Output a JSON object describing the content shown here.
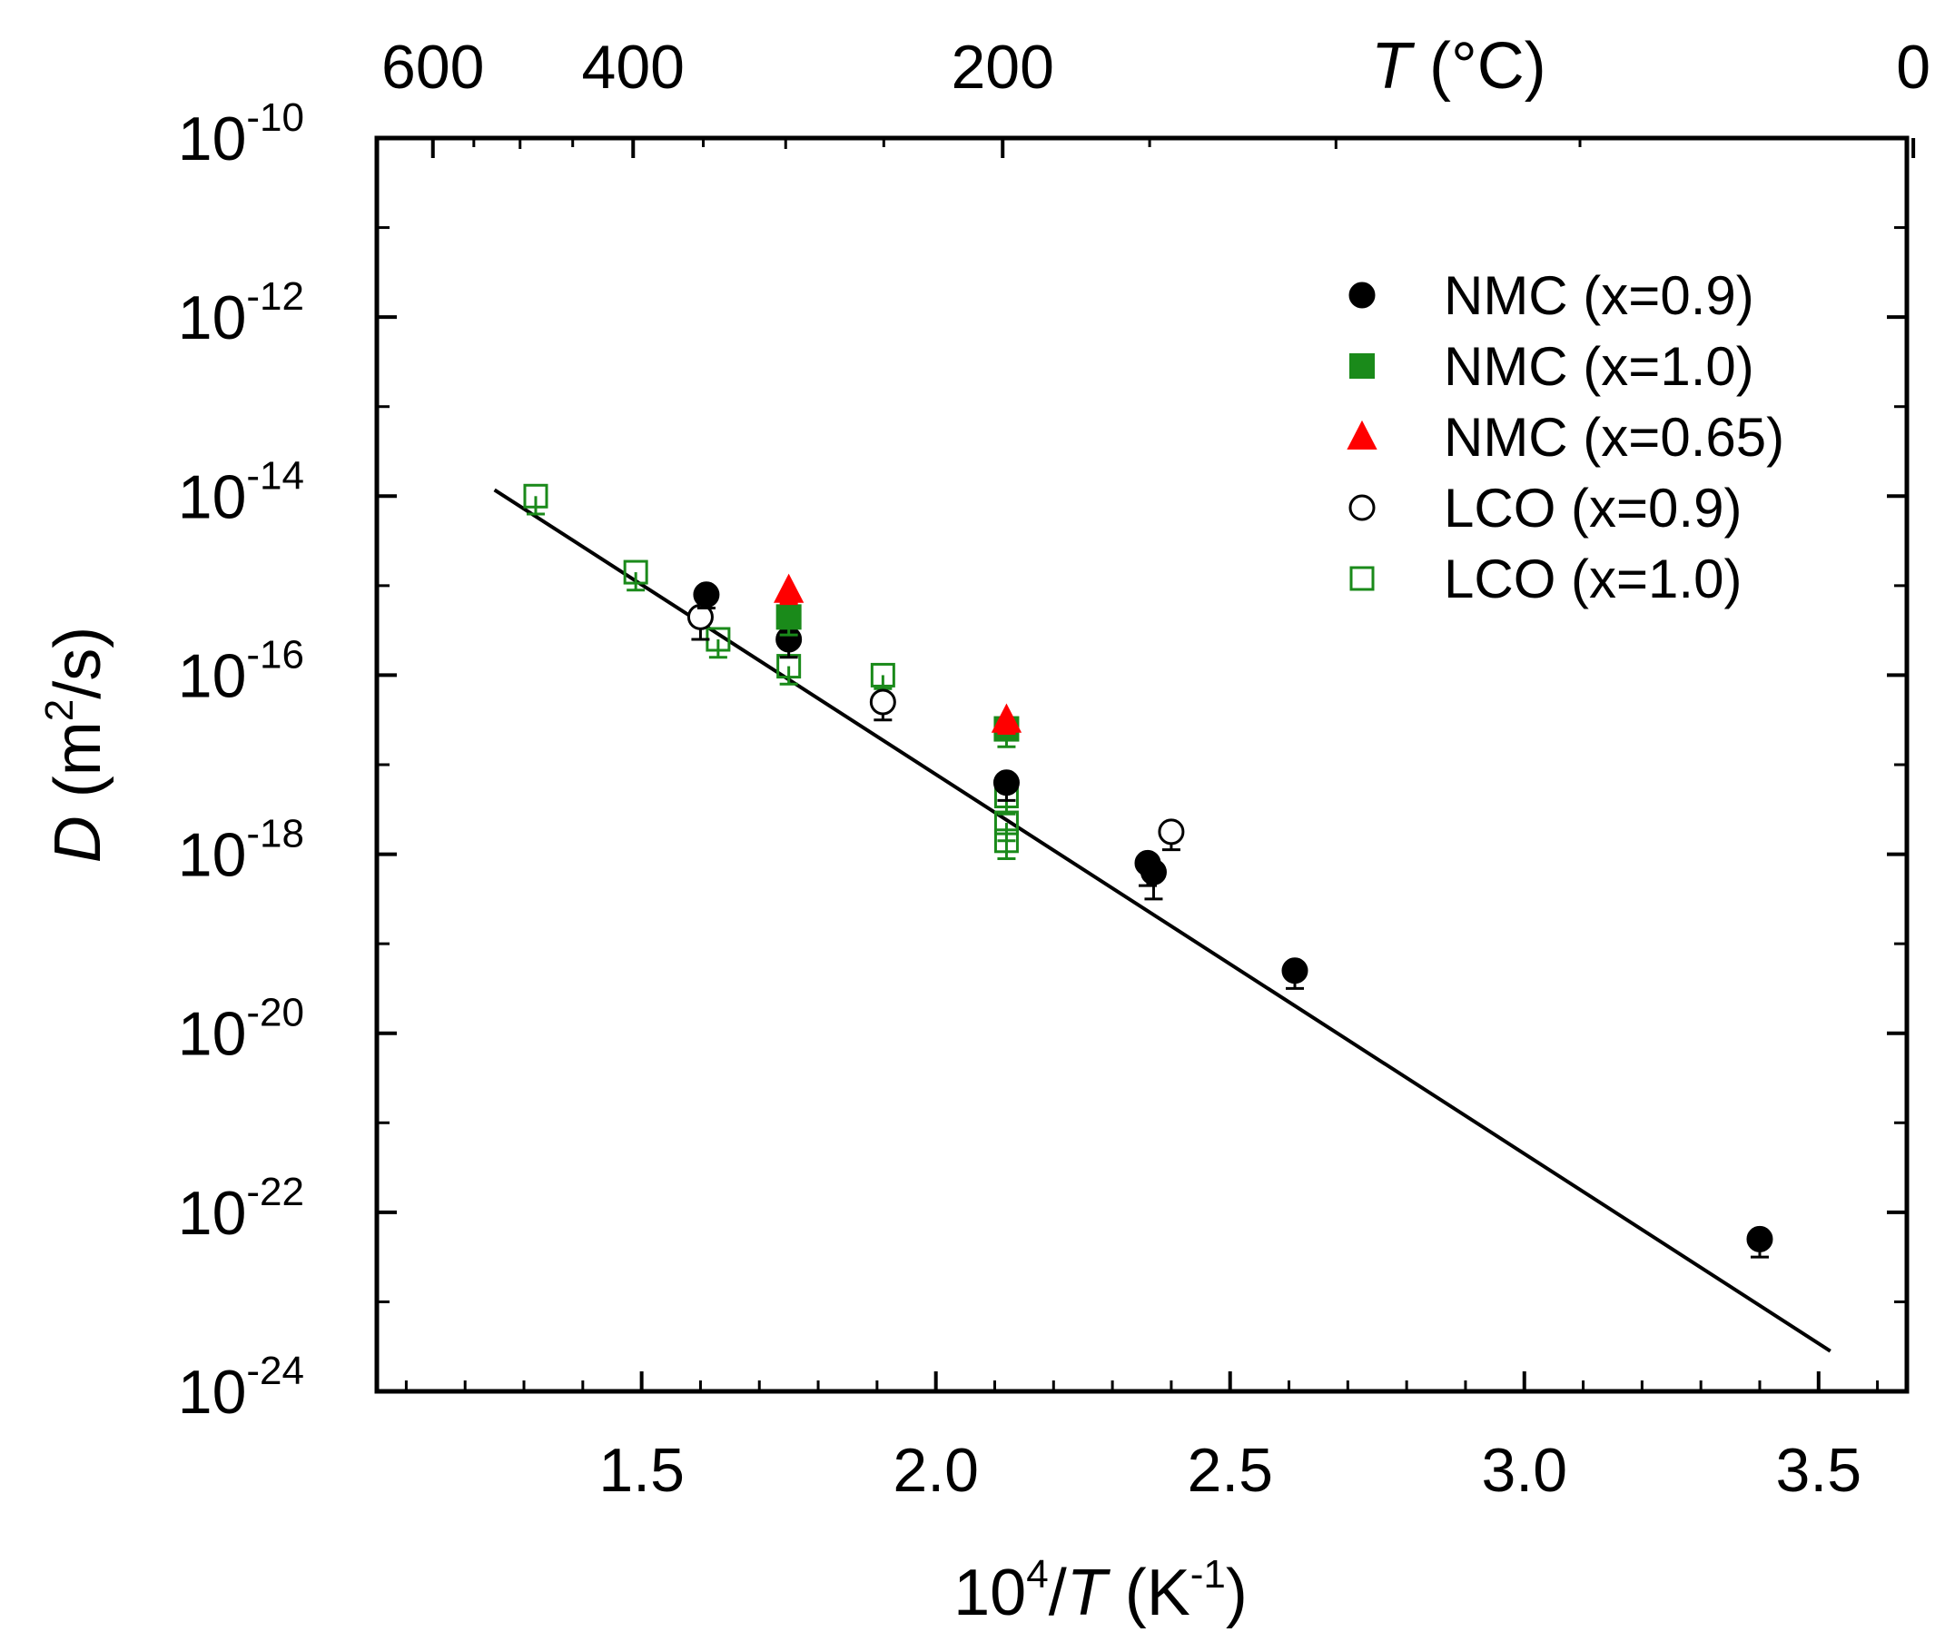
{
  "chart_data": {
    "type": "scatter",
    "x_axis": {
      "label_prefix": "10",
      "label_sup": "4",
      "label_sep": "/",
      "label_var": "T",
      "label_unit_open": " (K",
      "label_unit_sup": "-1",
      "label_unit_close": ")",
      "range": [
        1.05,
        3.65
      ],
      "ticks": [
        1.5,
        2.0,
        2.5,
        3.0,
        3.5
      ],
      "tick_labels": [
        "1.5",
        "2.0",
        "2.5",
        "3.0",
        "3.5"
      ]
    },
    "top_axis": {
      "label_var": "T",
      "label_unit": " (°C)",
      "ticks_celsius": [
        600,
        400,
        200,
        0
      ],
      "tick_labels": [
        "600",
        "400",
        "200",
        "0"
      ],
      "minor_ticks_celsius": [
        500,
        300,
        100
      ]
    },
    "y_axis": {
      "label_var": "D",
      "label_unit_open": " (m",
      "label_unit_sup": "2",
      "label_unit_close": "/s)",
      "scale": "log",
      "range_exponent": [
        -24,
        -10
      ],
      "ticks_exponent": [
        -10,
        -12,
        -14,
        -16,
        -18,
        -20,
        -22,
        -24
      ],
      "tick_base": "10",
      "tick_exponent_labels": [
        "-10",
        "-12",
        "-14",
        "-16",
        "-18",
        "-20",
        "-22",
        "-24"
      ]
    },
    "fit_line": {
      "x": [
        1.25,
        3.52
      ],
      "log10_y": [
        -13.93,
        -23.55
      ]
    },
    "series": [
      {
        "name": "NMC (x=0.9)",
        "marker": "circle-filled",
        "color": "#000000",
        "points": [
          {
            "x": 1.61,
            "log10_y": -15.1,
            "err": 0.15
          },
          {
            "x": 1.75,
            "log10_y": -15.6,
            "err": 0.2
          },
          {
            "x": 2.12,
            "log10_y": -17.2,
            "err": 0.2
          },
          {
            "x": 2.36,
            "log10_y": -18.1,
            "err": 0.25
          },
          {
            "x": 2.37,
            "log10_y": -18.2,
            "err": 0.3
          },
          {
            "x": 2.61,
            "log10_y": -19.3,
            "err": 0.2
          },
          {
            "x": 3.4,
            "log10_y": -22.3,
            "err": 0.2
          }
        ]
      },
      {
        "name": "NMC (x=1.0)",
        "marker": "square-filled",
        "color": "#1a8a1a",
        "points": [
          {
            "x": 1.75,
            "log10_y": -15.35,
            "err": 0.2
          },
          {
            "x": 2.12,
            "log10_y": -16.6,
            "err": 0.2
          }
        ]
      },
      {
        "name": "NMC (x=0.65)",
        "marker": "triangle-filled",
        "color": "#ff0000",
        "points": [
          {
            "x": 1.75,
            "log10_y": -15.05,
            "err": 0.15
          },
          {
            "x": 2.12,
            "log10_y": -16.5,
            "err": 0.15
          }
        ]
      },
      {
        "name": "LCO (x=0.9)",
        "marker": "circle-open",
        "color": "#000000",
        "points": [
          {
            "x": 1.6,
            "log10_y": -15.35,
            "err": 0.25
          },
          {
            "x": 1.91,
            "log10_y": -16.3,
            "err": 0.2
          },
          {
            "x": 2.4,
            "log10_y": -17.75,
            "err": 0.2
          }
        ]
      },
      {
        "name": "LCO (x=1.0)",
        "marker": "square-open",
        "color": "#1a8a1a",
        "points": [
          {
            "x": 1.32,
            "log10_y": -14.0,
            "err": 0.2
          },
          {
            "x": 1.49,
            "log10_y": -14.85,
            "err": 0.2
          },
          {
            "x": 1.63,
            "log10_y": -15.6,
            "err": 0.2
          },
          {
            "x": 1.75,
            "log10_y": -15.9,
            "err": 0.2
          },
          {
            "x": 1.91,
            "log10_y": -16.0,
            "err": 0.15
          },
          {
            "x": 2.12,
            "log10_y": -17.35,
            "err": 0.2
          },
          {
            "x": 2.12,
            "log10_y": -17.65,
            "err": 0.2
          },
          {
            "x": 2.12,
            "log10_y": -17.85,
            "err": 0.2
          }
        ]
      }
    ],
    "legend": {
      "position": "top-right",
      "entries": [
        "NMC (x=0.9)",
        "NMC (x=1.0)",
        "NMC (x=0.65)",
        "LCO (x=0.9)",
        "LCO (x=1.0)"
      ]
    }
  }
}
